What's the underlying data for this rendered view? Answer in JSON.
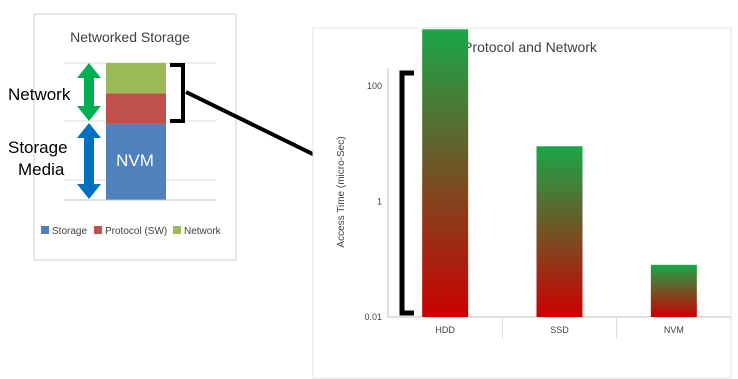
{
  "chart_data": [
    {
      "type": "bar",
      "stacked": true,
      "title": "Networked Storage",
      "categories": [
        "NVM"
      ],
      "series": [
        {
          "name": "Storage",
          "color": "#4f81bd",
          "values": [
            50
          ]
        },
        {
          "name": "Protocol (SW)",
          "color": "#c0504d",
          "values": [
            20
          ]
        },
        {
          "name": "Network",
          "color": "#9bbb59",
          "values": [
            20
          ]
        }
      ],
      "bar_label": "NVM",
      "side_labels": {
        "network": "Network",
        "storage_line1": "Storage",
        "storage_line2": "Media"
      },
      "legend": "bottom",
      "gradient_colors": {
        "top": "#1aa64a",
        "bottom": "#cc0000"
      }
    },
    {
      "type": "bar",
      "title": "Protocol and Network",
      "ylabel": "Access Time (micro-Sec)",
      "yscale": "log",
      "ylim": [
        0.01,
        1000
      ],
      "yticks": [
        0.01,
        1,
        100
      ],
      "ytick_labels": [
        "0.01",
        "1",
        "100"
      ],
      "categories": [
        "HDD",
        "SSD",
        "NVM"
      ],
      "values": [
        950,
        9,
        0.08
      ],
      "grid": false,
      "legend": "none"
    }
  ]
}
